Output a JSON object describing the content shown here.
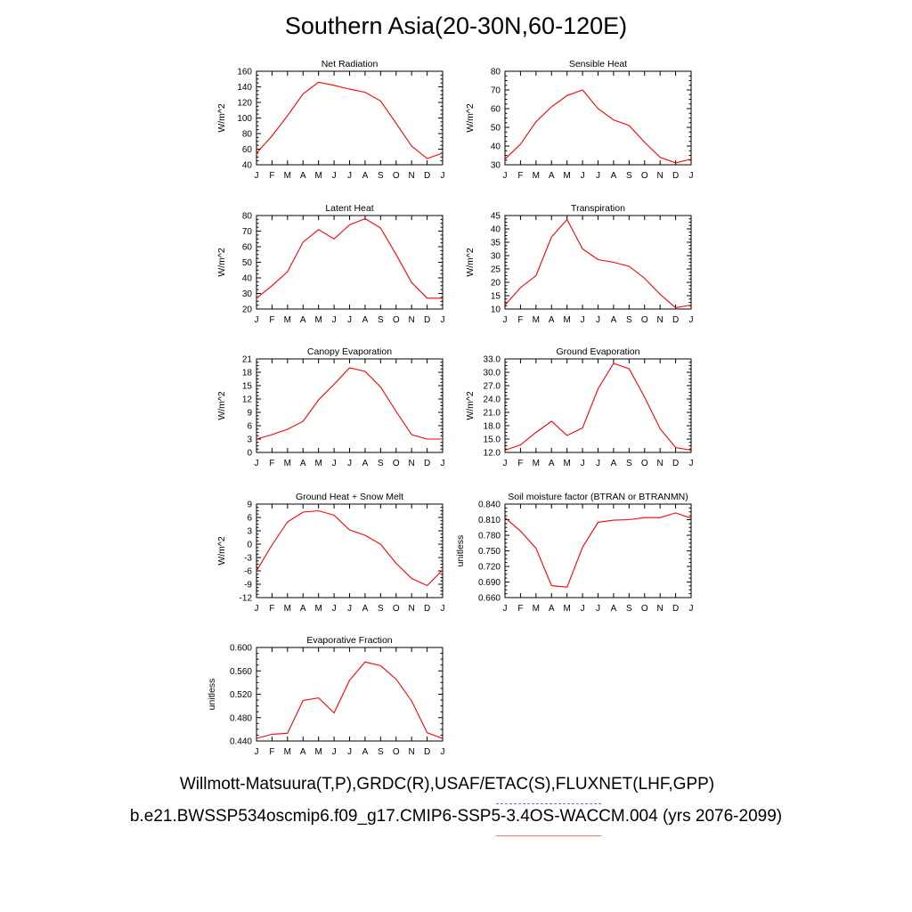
{
  "page": {
    "title": "Southern Asia(20-30N,60-120E)",
    "obs_sources": "Willmott-Matsuura(T,P),GRDC(R),USAF/ETAC(S),FLUXNET(LHF,GPP)",
    "case_name": "b.e21.BWSSP534oscmip6.f09_g17.CMIP6-SSP5-3.4OS-WACCM.004 (yrs 2076-2099)",
    "obs_line_color": "#6a6af2",
    "case_line_color": "#ff6e6e"
  },
  "chart_data": [
    {
      "type": "line",
      "title": "Net Radiation",
      "ylabel": "W/m^2",
      "x": [
        "J",
        "F",
        "M",
        "A",
        "M",
        "J",
        "J",
        "A",
        "S",
        "O",
        "N",
        "D",
        "J"
      ],
      "ylim": [
        40,
        160
      ],
      "yticks": [
        "40",
        "60",
        "80",
        "100",
        "120",
        "140",
        "160"
      ],
      "series": [
        {
          "values": [
            55,
            77,
            103,
            131,
            146,
            142,
            137,
            133,
            122,
            93,
            64,
            48,
            55
          ],
          "color": "#ff0000"
        }
      ]
    },
    {
      "type": "line",
      "title": "Sensible Heat",
      "ylabel": "W/m^2",
      "x": [
        "J",
        "F",
        "M",
        "A",
        "M",
        "J",
        "J",
        "A",
        "S",
        "O",
        "N",
        "D",
        "J"
      ],
      "ylim": [
        30,
        80
      ],
      "yticks": [
        "30",
        "40",
        "50",
        "60",
        "70",
        "80"
      ],
      "series": [
        {
          "values": [
            33,
            41,
            53,
            61,
            67,
            70,
            60,
            54,
            51,
            42,
            34,
            31,
            33
          ],
          "color": "#ff0000"
        }
      ]
    },
    {
      "type": "line",
      "title": "Latent Heat",
      "ylabel": "W/m^2",
      "x": [
        "J",
        "F",
        "M",
        "A",
        "M",
        "J",
        "J",
        "A",
        "S",
        "O",
        "N",
        "D",
        "J"
      ],
      "ylim": [
        20,
        80
      ],
      "yticks": [
        "20",
        "30",
        "40",
        "50",
        "60",
        "70",
        "80"
      ],
      "series": [
        {
          "values": [
            27,
            35,
            44,
            63,
            71,
            65,
            74,
            78,
            72,
            55,
            37,
            27,
            27
          ],
          "color": "#ff0000"
        }
      ]
    },
    {
      "type": "line",
      "title": "Transpiration",
      "ylabel": "W/m^2",
      "x": [
        "J",
        "F",
        "M",
        "A",
        "M",
        "J",
        "J",
        "A",
        "S",
        "O",
        "N",
        "D",
        "J"
      ],
      "ylim": [
        10,
        45
      ],
      "yticks": [
        "10",
        "15",
        "20",
        "25",
        "30",
        "35",
        "40",
        "45"
      ],
      "series": [
        {
          "values": [
            11.5,
            18,
            22.5,
            37,
            43.5,
            32.5,
            28.5,
            27.5,
            26,
            21.5,
            15.5,
            10.5,
            11.5
          ],
          "color": "#ff0000"
        }
      ]
    },
    {
      "type": "line",
      "title": "Canopy Evaporation",
      "ylabel": "W/m^2",
      "x": [
        "J",
        "F",
        "M",
        "A",
        "M",
        "J",
        "J",
        "A",
        "S",
        "O",
        "N",
        "D",
        "J"
      ],
      "ylim": [
        0,
        21
      ],
      "yticks": [
        "0",
        "3",
        "6",
        "9",
        "12",
        "15",
        "18",
        "21"
      ],
      "series": [
        {
          "values": [
            3,
            4,
            5.2,
            7,
            11.8,
            15.3,
            19,
            18.2,
            14.7,
            9.2,
            4,
            3,
            3
          ],
          "color": "#ff0000"
        }
      ]
    },
    {
      "type": "line",
      "title": "Ground Evaporation",
      "ylabel": "W/m^2",
      "x": [
        "J",
        "F",
        "M",
        "A",
        "M",
        "J",
        "J",
        "A",
        "S",
        "O",
        "N",
        "D",
        "J"
      ],
      "ylim": [
        12,
        33
      ],
      "yticks": [
        "12.0",
        "15.0",
        "18.0",
        "21.0",
        "24.0",
        "27.0",
        "30.0",
        "33.0"
      ],
      "series": [
        {
          "values": [
            12.5,
            13.7,
            16.5,
            19,
            15.8,
            17.5,
            26.3,
            32,
            30.8,
            24.4,
            17.3,
            13.1,
            12.5
          ],
          "color": "#ff0000"
        }
      ]
    },
    {
      "type": "line",
      "title": "Ground Heat + Snow Melt",
      "ylabel": "W/m^2",
      "x": [
        "J",
        "F",
        "M",
        "A",
        "M",
        "J",
        "J",
        "A",
        "S",
        "O",
        "N",
        "D",
        "J"
      ],
      "ylim": [
        -12,
        9
      ],
      "yticks": [
        "-12",
        "-9",
        "-6",
        "-3",
        "0",
        "3",
        "6",
        "9"
      ],
      "series": [
        {
          "values": [
            -6,
            -0.2,
            5,
            7.2,
            7.5,
            6.5,
            3.2,
            2,
            0,
            -4.3,
            -7.7,
            -9.3,
            -5.8
          ],
          "color": "#ff0000"
        }
      ]
    },
    {
      "type": "line",
      "title": "Soil moisture factor (BTRAN or BTRANMN)",
      "ylabel": "unitless",
      "x": [
        "J",
        "F",
        "M",
        "A",
        "M",
        "J",
        "J",
        "A",
        "S",
        "O",
        "N",
        "D",
        "J"
      ],
      "ylim": [
        0.66,
        0.84
      ],
      "yticks": [
        "0.660",
        "0.690",
        "0.720",
        "0.750",
        "0.780",
        "0.810",
        "0.840"
      ],
      "series": [
        {
          "values": [
            0.814,
            0.788,
            0.755,
            0.683,
            0.68,
            0.757,
            0.805,
            0.809,
            0.81,
            0.814,
            0.814,
            0.823,
            0.813
          ],
          "color": "#ff0000"
        }
      ]
    },
    {
      "type": "line",
      "title": "Evaporative Fraction",
      "ylabel": "unitless",
      "x": [
        "J",
        "F",
        "M",
        "A",
        "M",
        "J",
        "J",
        "A",
        "S",
        "O",
        "N",
        "D",
        "J"
      ],
      "ylim": [
        0.42,
        0.6
      ],
      "yticks": [
        "0.440",
        "0.480",
        "0.520",
        "0.560",
        "0.600"
      ],
      "series": [
        {
          "values": [
            0.425,
            0.433,
            0.435,
            0.498,
            0.503,
            0.474,
            0.537,
            0.572,
            0.565,
            0.539,
            0.497,
            0.436,
            0.425
          ],
          "color": "#ff0000"
        }
      ]
    }
  ]
}
